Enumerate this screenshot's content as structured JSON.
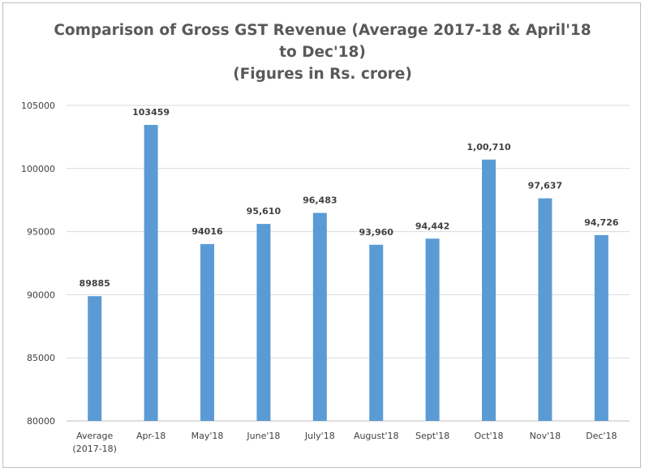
{
  "chart_data": {
    "type": "bar",
    "title": "Comparison of Gross GST Revenue (Average 2017-18 & April'18",
    "title_line2": "to Dec'18)",
    "subtitle": "(Figures in Rs. crore)",
    "xlabel": "",
    "ylabel": "",
    "ylim": [
      80000,
      105000
    ],
    "yticks": [
      "80000",
      "85000",
      "90000",
      "95000",
      "100000",
      "105000"
    ],
    "grid": true,
    "legend": "none",
    "bar_color": "#5b9bd5",
    "categories": [
      [
        "Average",
        "(2017-18)"
      ],
      [
        "Apr-18"
      ],
      [
        "May'18"
      ],
      [
        "June'18"
      ],
      [
        "July'18"
      ],
      [
        "August'18"
      ],
      [
        "Sept'18"
      ],
      [
        "Oct'18"
      ],
      [
        "Nov'18"
      ],
      [
        "Dec'18"
      ]
    ],
    "values": [
      89885,
      103459,
      94016,
      95610,
      96483,
      93960,
      94442,
      100710,
      97637,
      94726
    ],
    "data_labels": [
      "89885",
      "103459",
      "94016",
      "95,610",
      "96,483",
      "93,960",
      "94,442",
      "1,00,710",
      "97,637",
      "94,726"
    ]
  }
}
